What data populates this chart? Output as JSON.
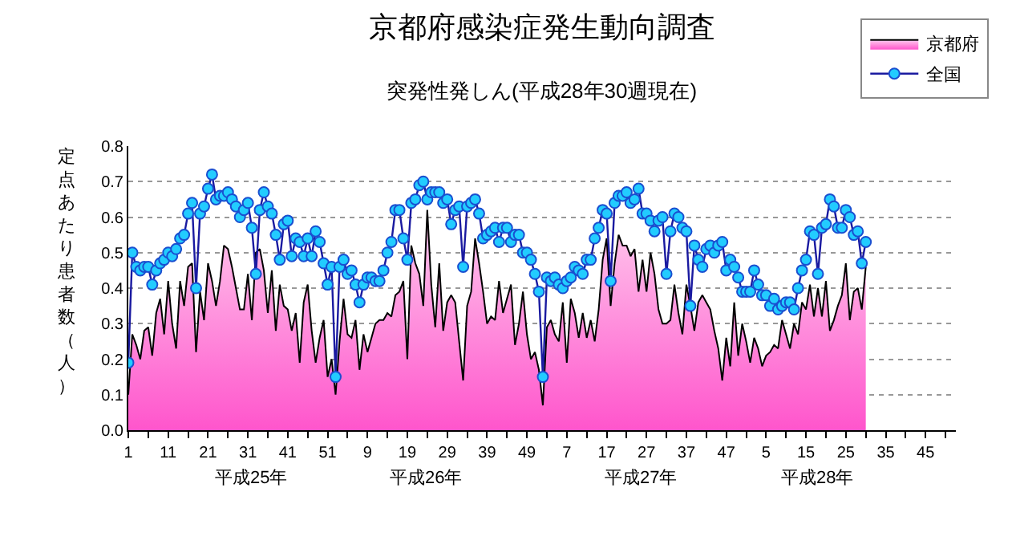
{
  "chart_data": {
    "type": "line",
    "title": "京都府感染症発生動向調査",
    "subtitle": "突発性発しん(平成28年30週現在)",
    "ylabel": "定点あたり患者数（人）",
    "categories": [
      "1",
      null,
      null,
      null,
      null,
      null,
      null,
      null,
      null,
      null,
      "11",
      null,
      null,
      null,
      null,
      null,
      null,
      null,
      null,
      null,
      "21",
      null,
      null,
      null,
      null,
      null,
      null,
      null,
      null,
      null,
      "31",
      null,
      null,
      null,
      null,
      null,
      null,
      null,
      null,
      null,
      "41",
      null,
      null,
      null,
      null,
      null,
      null,
      null,
      null,
      null,
      "51",
      null,
      null,
      null,
      null,
      null,
      null,
      null,
      null,
      null,
      "9",
      null,
      null,
      null,
      null,
      null,
      null,
      null,
      null,
      null,
      "19",
      null,
      null,
      null,
      null,
      null,
      null,
      null,
      null,
      null,
      "29",
      null,
      null,
      null,
      null,
      null,
      null,
      null,
      null,
      null,
      "39",
      null,
      null,
      null,
      null,
      null,
      null,
      null,
      null,
      null,
      "49",
      null,
      null,
      null,
      null,
      null,
      null,
      null,
      null,
      null,
      "7",
      null,
      null,
      null,
      null,
      null,
      null,
      null,
      null,
      null,
      "17",
      null,
      null,
      null,
      null,
      null,
      null,
      null,
      null,
      null,
      "27",
      null,
      null,
      null,
      null,
      null,
      null,
      null,
      null,
      null,
      "37",
      null,
      null,
      null,
      null,
      null,
      null,
      null,
      null,
      null,
      "47",
      null,
      null,
      null,
      null,
      null,
      null,
      null,
      null,
      null,
      "5",
      null,
      null,
      null,
      null,
      null,
      null,
      null,
      null,
      null,
      "15",
      null,
      null,
      null,
      null,
      null,
      null,
      null,
      null,
      null,
      "25",
      null,
      null,
      null,
      null,
      null,
      null,
      null,
      null,
      null,
      "35",
      null,
      null,
      null,
      null,
      null,
      null,
      null,
      null,
      null,
      "45",
      null,
      null,
      null,
      null,
      null,
      null,
      null
    ],
    "series": [
      {
        "name": "京都府",
        "type": "area",
        "color": "#ff55cc",
        "values": [
          0.1,
          0.27,
          0.24,
          0.2,
          0.28,
          0.29,
          0.21,
          0.33,
          0.37,
          0.27,
          0.42,
          0.3,
          0.23,
          0.42,
          0.35,
          0.46,
          0.47,
          0.22,
          0.39,
          0.31,
          0.47,
          0.42,
          0.35,
          0.42,
          0.52,
          0.51,
          0.46,
          0.4,
          0.34,
          0.34,
          0.44,
          0.31,
          0.5,
          0.51,
          0.45,
          0.33,
          0.45,
          0.28,
          0.41,
          0.35,
          0.34,
          0.28,
          0.33,
          0.19,
          0.36,
          0.41,
          0.28,
          0.19,
          0.26,
          0.31,
          0.15,
          0.2,
          0.1,
          0.25,
          0.37,
          0.27,
          0.26,
          0.31,
          0.17,
          0.27,
          0.22,
          0.26,
          0.3,
          0.31,
          0.31,
          0.33,
          0.32,
          0.38,
          0.39,
          0.42,
          0.2,
          0.52,
          0.47,
          0.44,
          0.35,
          0.62,
          0.41,
          0.29,
          0.47,
          0.28,
          0.36,
          0.38,
          0.36,
          0.25,
          0.14,
          0.35,
          0.39,
          0.54,
          0.47,
          0.39,
          0.3,
          0.32,
          0.31,
          0.42,
          0.33,
          0.37,
          0.41,
          0.24,
          0.3,
          0.39,
          0.27,
          0.2,
          0.22,
          0.17,
          0.07,
          0.29,
          0.31,
          0.27,
          0.25,
          0.36,
          0.19,
          0.37,
          0.33,
          0.26,
          0.33,
          0.26,
          0.31,
          0.25,
          0.34,
          0.48,
          0.54,
          0.35,
          0.47,
          0.55,
          0.52,
          0.52,
          0.49,
          0.51,
          0.39,
          0.48,
          0.39,
          0.5,
          0.44,
          0.34,
          0.3,
          0.3,
          0.31,
          0.41,
          0.33,
          0.27,
          0.41,
          0.35,
          0.28,
          0.36,
          0.38,
          0.36,
          0.34,
          0.28,
          0.23,
          0.14,
          0.26,
          0.18,
          0.36,
          0.21,
          0.3,
          0.25,
          0.19,
          0.26,
          0.23,
          0.18,
          0.21,
          0.22,
          0.24,
          0.23,
          0.31,
          0.27,
          0.23,
          0.3,
          0.27,
          0.36,
          0.34,
          0.41,
          0.32,
          0.4,
          0.32,
          0.42,
          0.28,
          0.31,
          0.35,
          0.38,
          0.47,
          0.31,
          0.39,
          0.4,
          0.34,
          0.46,
          null,
          null,
          null,
          null,
          null,
          null,
          null,
          null,
          null,
          null,
          null,
          null,
          null,
          null,
          null,
          null,
          null,
          null,
          null,
          null,
          null,
          null
        ]
      },
      {
        "name": "全国",
        "color": "#22ccff",
        "marker": "circle",
        "values": [
          0.19,
          0.5,
          0.46,
          0.45,
          0.46,
          0.46,
          0.41,
          0.45,
          0.47,
          0.48,
          0.5,
          0.49,
          0.51,
          0.54,
          0.55,
          0.61,
          0.64,
          0.4,
          0.61,
          0.63,
          0.68,
          0.72,
          0.65,
          0.66,
          0.66,
          0.67,
          0.65,
          0.63,
          0.6,
          0.62,
          0.64,
          0.57,
          0.44,
          0.62,
          0.67,
          0.63,
          0.61,
          0.55,
          0.48,
          0.58,
          0.59,
          0.49,
          0.54,
          0.53,
          0.49,
          0.54,
          0.49,
          0.56,
          0.53,
          0.47,
          0.41,
          0.46,
          0.15,
          0.46,
          0.48,
          0.44,
          0.45,
          0.41,
          0.36,
          0.41,
          0.43,
          0.43,
          0.42,
          0.42,
          0.45,
          0.5,
          0.53,
          0.62,
          0.62,
          0.54,
          0.48,
          0.64,
          0.65,
          0.69,
          0.7,
          0.65,
          0.67,
          0.67,
          0.67,
          0.64,
          0.65,
          0.58,
          0.62,
          0.63,
          0.46,
          0.63,
          0.64,
          0.65,
          0.61,
          0.54,
          0.55,
          0.56,
          0.57,
          0.53,
          0.57,
          0.57,
          0.53,
          0.55,
          0.55,
          0.5,
          0.5,
          0.48,
          0.44,
          0.39,
          0.15,
          0.43,
          0.42,
          0.43,
          0.41,
          0.4,
          0.42,
          0.43,
          0.46,
          0.45,
          0.44,
          0.48,
          0.48,
          0.54,
          0.57,
          0.62,
          0.61,
          0.42,
          0.64,
          0.66,
          0.66,
          0.67,
          0.64,
          0.65,
          0.68,
          0.61,
          0.61,
          0.59,
          0.56,
          0.59,
          0.6,
          0.44,
          0.56,
          0.61,
          0.6,
          0.57,
          0.56,
          0.35,
          0.52,
          0.48,
          0.46,
          0.51,
          0.52,
          0.5,
          0.52,
          0.53,
          0.45,
          0.48,
          0.46,
          0.43,
          0.39,
          0.39,
          0.39,
          0.45,
          0.41,
          0.38,
          0.38,
          0.35,
          0.37,
          0.34,
          0.35,
          0.36,
          0.36,
          0.34,
          0.4,
          0.45,
          0.48,
          0.56,
          0.55,
          0.44,
          0.57,
          0.58,
          0.65,
          0.63,
          0.57,
          0.57,
          0.62,
          0.6,
          0.55,
          0.56,
          0.47,
          0.53,
          null,
          null,
          null,
          null,
          null,
          null,
          null,
          null,
          null,
          null,
          null,
          null,
          null,
          null,
          null,
          null,
          null,
          null,
          null,
          null,
          null,
          null
        ]
      }
    ],
    "ylim": [
      0,
      0.8
    ],
    "yticks": [
      {
        "value": 0,
        "label": "0.0"
      },
      {
        "value": 0.1,
        "label": "0.1"
      },
      {
        "value": 0.2,
        "label": "0.2"
      },
      {
        "value": 0.3,
        "label": "0.3"
      },
      {
        "value": 0.4,
        "label": "0.4"
      },
      {
        "value": 0.5,
        "label": "0.5"
      },
      {
        "value": 0.6,
        "label": "0.6"
      },
      {
        "value": 0.7,
        "label": "0.7"
      },
      {
        "value": 0.8,
        "label": "0.8"
      }
    ],
    "grid": "y",
    "legend": "top right",
    "line_style": "solid",
    "annotations": [
      "平成25年",
      "平成26年",
      "平成27年",
      "平成28年"
    ]
  }
}
